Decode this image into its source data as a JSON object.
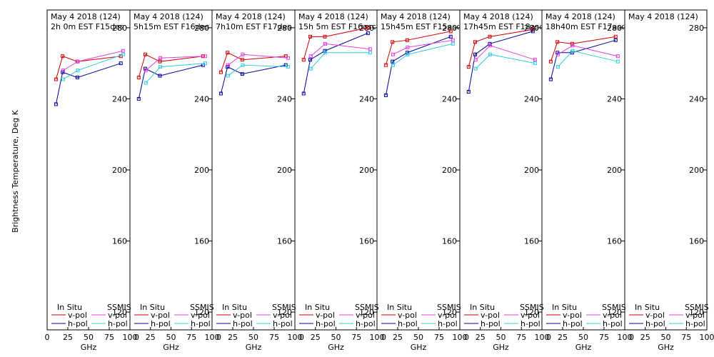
{
  "chart_data": {
    "type": "line",
    "ylabel": "Brightness Temperature, Deg K",
    "xlabel": "GHz",
    "ylim": [
      110,
      290
    ],
    "xlim": [
      0,
      100
    ],
    "x_ticks": [
      0,
      25,
      50,
      75,
      100
    ],
    "x_tick_labels": [
      "0",
      "25",
      "50",
      "75",
      "100"
    ],
    "y_ticks": [
      120,
      160,
      200,
      240,
      280
    ],
    "y_tick_labels": [
      "120",
      "160",
      "200",
      "240",
      "280"
    ],
    "colors": {
      "insitu_v": "#cc0000",
      "insitu_h": "#000099",
      "ssmis_v": "#e040e0",
      "ssmis_h": "#33ccdd"
    },
    "legend": {
      "insitu_title": "In Situ",
      "ssmis_title": "SSMIS",
      "v_label": "v-pol",
      "h_label": "h-pol"
    },
    "panels": [
      {
        "title1": "May 4 2018 (124)",
        "title2": "2h 0m  EST F15des",
        "series": {
          "insitu_v": {
            "x": [
              10.7,
              18.7,
              36.5,
              89
            ],
            "y": [
              251,
              264,
              261,
              264
            ]
          },
          "insitu_h": {
            "x": [
              10.7,
              18.7,
              36.5,
              89
            ],
            "y": [
              237,
              255,
              252,
              260
            ]
          },
          "ssmis_v": {
            "x": [
              19.35,
              37,
              91.65
            ],
            "y": [
              256,
              261,
              267
            ]
          },
          "ssmis_h": {
            "x": [
              19.35,
              37,
              91.65
            ],
            "y": [
              251,
              256,
              265
            ]
          }
        }
      },
      {
        "title1": "May 4 2018 (124)",
        "title2": "5h15m  EST F16des",
        "series": {
          "insitu_v": {
            "x": [
              10.7,
              18.7,
              36.5,
              89
            ],
            "y": [
              252,
              265,
              261,
              264
            ]
          },
          "insitu_h": {
            "x": [
              10.7,
              18.7,
              36.5,
              89
            ],
            "y": [
              240,
              257,
              253,
              259
            ]
          },
          "ssmis_v": {
            "x": [
              19.35,
              37,
              91.65
            ],
            "y": [
              256,
              263,
              264
            ]
          },
          "ssmis_h": {
            "x": [
              19.35,
              37,
              91.65
            ],
            "y": [
              249,
              258,
              260
            ]
          }
        }
      },
      {
        "title1": "May 4 2018 (124)",
        "title2": "7h10m  EST F17des",
        "series": {
          "insitu_v": {
            "x": [
              10.7,
              18.7,
              36.5,
              89
            ],
            "y": [
              255,
              266,
              262,
              264
            ]
          },
          "insitu_h": {
            "x": [
              10.7,
              18.7,
              36.5,
              89
            ],
            "y": [
              243,
              258,
              254,
              259
            ]
          },
          "ssmis_v": {
            "x": [
              19.35,
              37,
              91.65
            ],
            "y": [
              259,
              265,
              263
            ]
          },
          "ssmis_h": {
            "x": [
              19.35,
              37,
              91.65
            ],
            "y": [
              253,
              259,
              258
            ]
          }
        }
      },
      {
        "title1": "May 4 2018 (124)",
        "title2": "15h 5m  EST F16asc",
        "series": {
          "insitu_v": {
            "x": [
              10.7,
              18.7,
              36.5,
              89
            ],
            "y": [
              262,
              275,
              275,
              280
            ]
          },
          "insitu_h": {
            "x": [
              10.7,
              18.7,
              36.5,
              89
            ],
            "y": [
              243,
              262,
              267,
              277
            ]
          },
          "ssmis_v": {
            "x": [
              19.35,
              37,
              91.65
            ],
            "y": [
              264,
              271,
              268
            ]
          },
          "ssmis_h": {
            "x": [
              19.35,
              37,
              91.65
            ],
            "y": [
              257,
              266,
              266
            ]
          }
        }
      },
      {
        "title1": "May 4 2018 (124)",
        "title2": "15h45m  EST F15asc",
        "series": {
          "insitu_v": {
            "x": [
              10.7,
              18.7,
              36.5,
              89
            ],
            "y": [
              259,
              272,
              273,
              278
            ]
          },
          "insitu_h": {
            "x": [
              10.7,
              18.7,
              36.5,
              89
            ],
            "y": [
              242,
              261,
              266,
              275
            ]
          },
          "ssmis_v": {
            "x": [
              19.35,
              37,
              91.65
            ],
            "y": [
              265,
              269,
              273
            ]
          },
          "ssmis_h": {
            "x": [
              19.35,
              37,
              91.65
            ],
            "y": [
              259,
              265,
              271
            ]
          }
        }
      },
      {
        "title1": "May 4 2018 (124)",
        "title2": "17h45m  EST F18asc",
        "series": {
          "insitu_v": {
            "x": [
              10.7,
              18.7,
              36.5,
              89
            ],
            "y": [
              258,
              272,
              275,
              279
            ]
          },
          "insitu_h": {
            "x": [
              10.7,
              18.7,
              36.5,
              89
            ],
            "y": [
              244,
              265,
              271,
              278
            ]
          },
          "ssmis_v": {
            "x": [
              19.35,
              37,
              91.65
            ],
            "y": [
              262,
              270,
              262
            ]
          },
          "ssmis_h": {
            "x": [
              19.35,
              37,
              91.65
            ],
            "y": [
              257,
              265,
              260
            ]
          }
        }
      },
      {
        "title1": "May 4 2018 (124)",
        "title2": "18h40m  EST F17asc",
        "series": {
          "insitu_v": {
            "x": [
              10.7,
              18.7,
              36.5,
              89
            ],
            "y": [
              261,
              272,
              271,
              275
            ]
          },
          "insitu_h": {
            "x": [
              10.7,
              18.7,
              36.5,
              89
            ],
            "y": [
              251,
              266,
              266,
              273
            ]
          },
          "ssmis_v": {
            "x": [
              19.35,
              37,
              91.65
            ],
            "y": [
              265,
              270,
              264
            ]
          },
          "ssmis_h": {
            "x": [
              19.35,
              37,
              91.65
            ],
            "y": [
              258,
              267,
              261
            ]
          }
        }
      },
      {
        "title1": "May 4 2018 (124)",
        "title2": "",
        "series": {}
      }
    ]
  }
}
